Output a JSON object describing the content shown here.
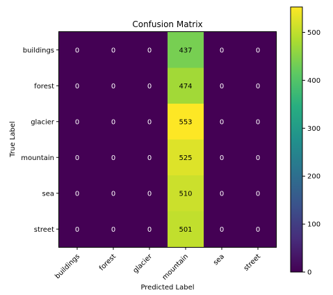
{
  "chart_data": {
    "type": "heatmap",
    "title": "Confusion Matrix",
    "xlabel": "Predicted Label",
    "ylabel": "True Label",
    "x_categories": [
      "buildings",
      "forest",
      "glacier",
      "mountain",
      "sea",
      "street"
    ],
    "y_categories": [
      "buildings",
      "forest",
      "glacier",
      "mountain",
      "sea",
      "street"
    ],
    "values": [
      [
        0,
        0,
        0,
        437,
        0,
        0
      ],
      [
        0,
        0,
        0,
        474,
        0,
        0
      ],
      [
        0,
        0,
        0,
        553,
        0,
        0
      ],
      [
        0,
        0,
        0,
        525,
        0,
        0
      ],
      [
        0,
        0,
        0,
        510,
        0,
        0
      ],
      [
        0,
        0,
        0,
        501,
        0,
        0
      ]
    ],
    "colormap": "viridis",
    "colorbar": {
      "min": 0,
      "max": 553,
      "ticks": [
        0,
        100,
        200,
        300,
        400,
        500
      ]
    }
  }
}
